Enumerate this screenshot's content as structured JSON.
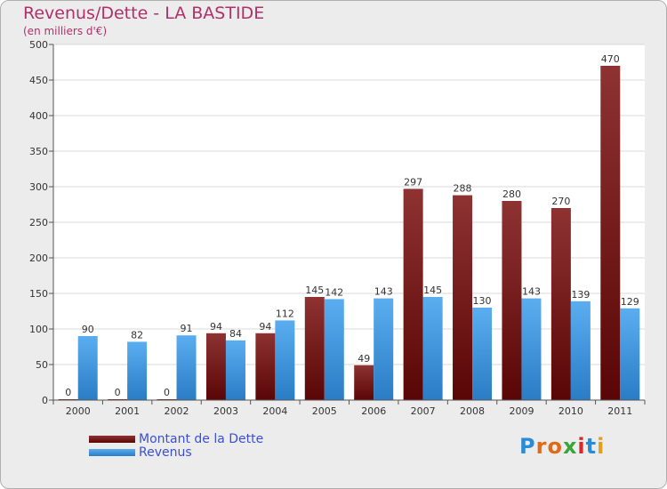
{
  "header": {
    "title": "Revenus/Dette - LA BASTIDE",
    "subtitle": "(en milliers d'€)"
  },
  "legend": {
    "items": [
      {
        "label": "Montant de la Dette",
        "color": "#7a1616"
      },
      {
        "label": "Revenus",
        "color": "#3a8fd6"
      }
    ]
  },
  "logo": {
    "text": "Proxiti",
    "letters": [
      {
        "ch": "P",
        "color": "#2a8bd8"
      },
      {
        "ch": "r",
        "color": "#e06a1a"
      },
      {
        "ch": "o",
        "color": "#e06a1a"
      },
      {
        "ch": "x",
        "color": "#3aa63a"
      },
      {
        "ch": "i",
        "color": "#d62a2a"
      },
      {
        "ch": "t",
        "color": "#2a8bd8"
      },
      {
        "ch": "i",
        "color": "#e0a01a"
      }
    ]
  },
  "chart_data": {
    "type": "bar",
    "title": "Revenus/Dette - LA BASTIDE",
    "subtitle": "(en milliers d'€)",
    "categories": [
      "2000",
      "2001",
      "2002",
      "2003",
      "2004",
      "2005",
      "2006",
      "2007",
      "2008",
      "2009",
      "2010",
      "2011"
    ],
    "series": [
      {
        "name": "Montant de la Dette",
        "color": "#7a1616",
        "values": [
          0,
          0,
          0,
          94,
          94,
          145,
          49,
          297,
          288,
          280,
          270,
          470
        ]
      },
      {
        "name": "Revenus",
        "color": "#3a8fd6",
        "values": [
          90,
          82,
          91,
          84,
          112,
          142,
          143,
          145,
          130,
          143,
          139,
          129
        ]
      }
    ],
    "ylim": [
      0,
      500
    ],
    "yticks": [
      0,
      50,
      100,
      150,
      200,
      250,
      300,
      350,
      400,
      450,
      500
    ],
    "grid": true,
    "legend_position": "bottom-left"
  }
}
